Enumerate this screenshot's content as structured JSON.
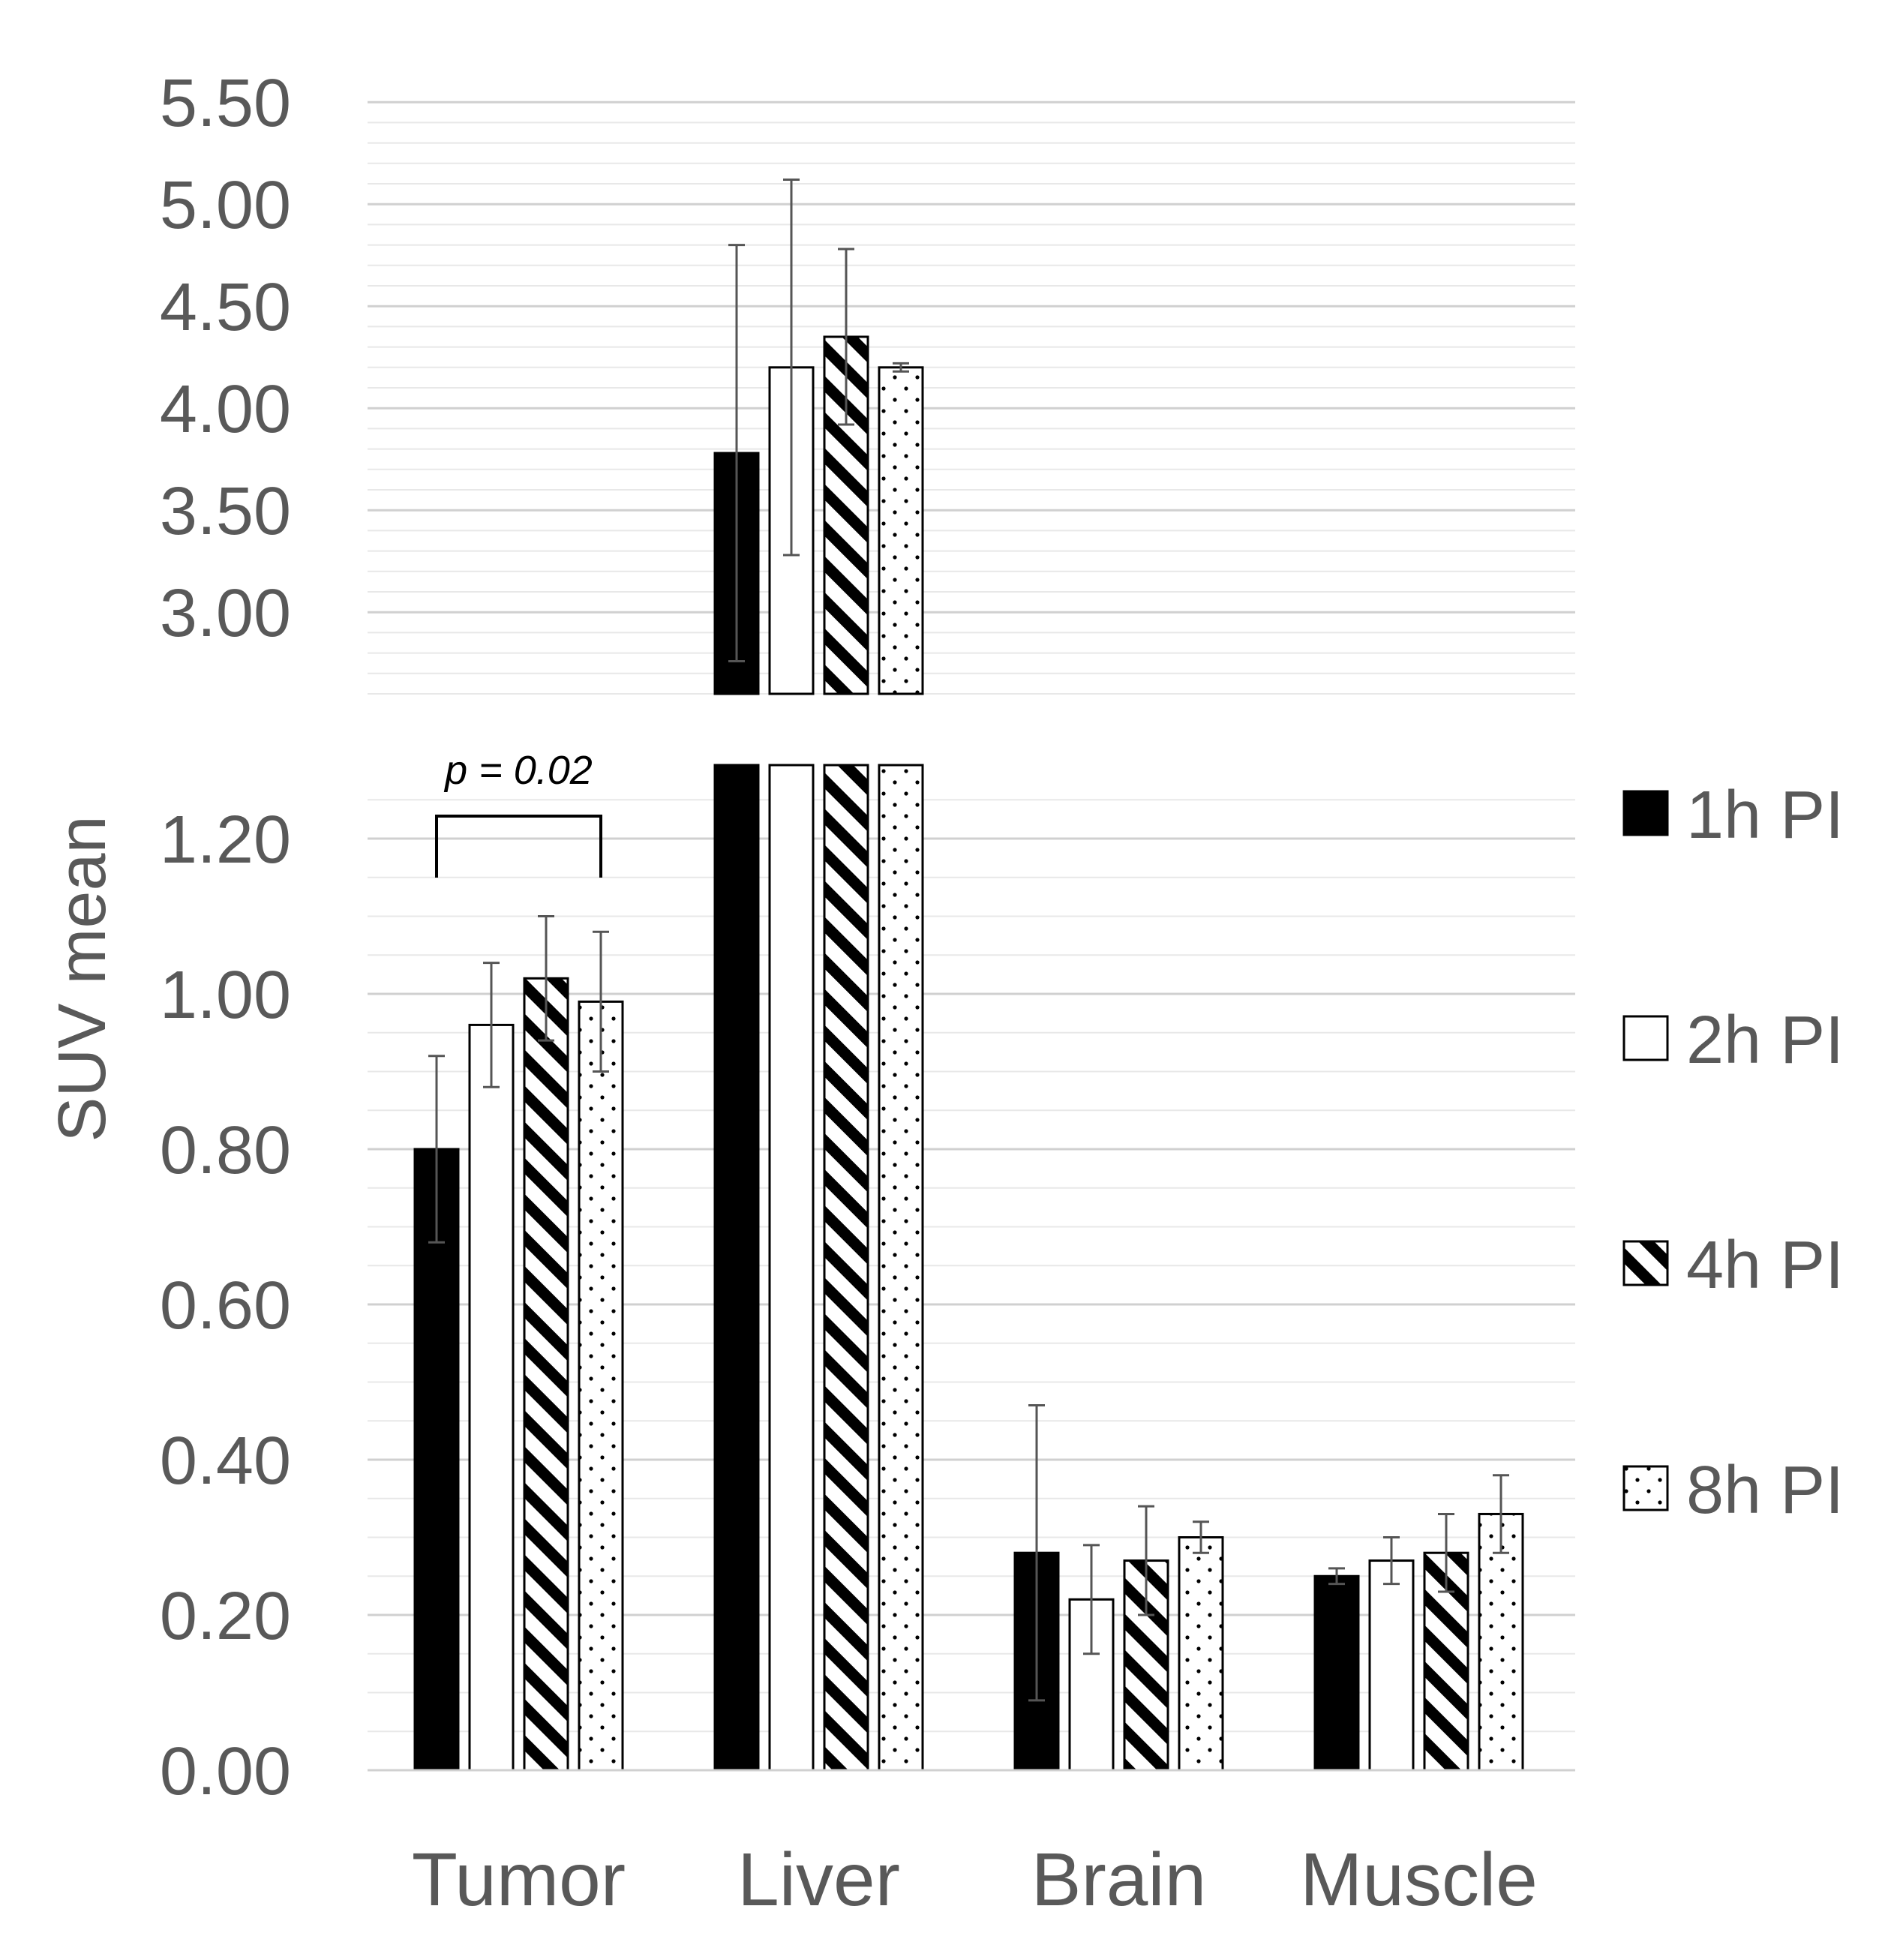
{
  "chart_data": {
    "type": "bar",
    "ylabel": "SUV mean",
    "axis_break": true,
    "ylim_lower": [
      0,
      1.3
    ],
    "ylim_upper": [
      2.6,
      5.5
    ],
    "yticks_lower": [
      "0.00",
      "0.20",
      "0.40",
      "0.60",
      "0.80",
      "1.00",
      "1.20"
    ],
    "yticks_upper": [
      "3.00",
      "3.50",
      "4.00",
      "4.50",
      "5.00",
      "5.50"
    ],
    "categories": [
      "Tumor",
      "Liver",
      "Brain",
      "Muscle"
    ],
    "series": [
      {
        "name": "1h PI",
        "pattern": "solid-black",
        "values": [
          0.8,
          3.78,
          0.28,
          0.25
        ],
        "errors": [
          0.12,
          1.02,
          0.19,
          0.01
        ]
      },
      {
        "name": "2h PI",
        "pattern": "white",
        "values": [
          0.96,
          4.2,
          0.22,
          0.27
        ],
        "errors": [
          0.08,
          0.92,
          0.07,
          0.03
        ]
      },
      {
        "name": "4h PI",
        "pattern": "diagonal-stripes",
        "values": [
          1.02,
          4.35,
          0.27,
          0.28
        ],
        "errors": [
          0.08,
          0.43,
          0.07,
          0.05
        ]
      },
      {
        "name": "8h PI",
        "pattern": "dots",
        "values": [
          0.99,
          4.2,
          0.3,
          0.33
        ],
        "errors": [
          0.09,
          0.02,
          0.02,
          0.05
        ]
      }
    ],
    "annotations": [
      {
        "text": "p = 0.02",
        "category": "Tumor",
        "from_series": 0,
        "to_series": 3
      }
    ],
    "legend_position": "right",
    "grid": true
  }
}
